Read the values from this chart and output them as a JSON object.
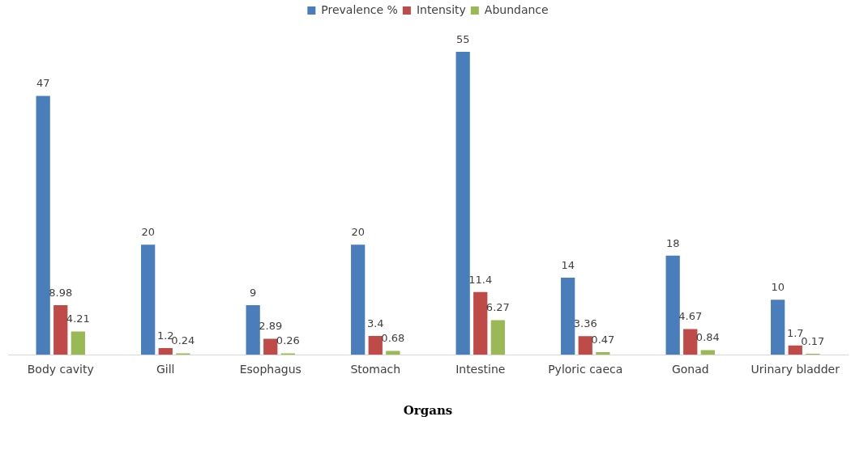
{
  "chart_data": {
    "type": "bar",
    "xlabel": "Organs",
    "categories": [
      "Body cavity",
      "Gill",
      "Esophagus",
      "Stomach",
      "Intestine",
      "Pyloric caeca",
      "Gonad",
      "Urinary bladder"
    ],
    "series": [
      {
        "name": "Prevalence %",
        "color": "#4a7ebb",
        "values": [
          47,
          20,
          9,
          20,
          55,
          14,
          18,
          10
        ]
      },
      {
        "name": "Intensity",
        "color": "#be4b48",
        "values": [
          8.98,
          1.2,
          2.89,
          3.4,
          11.4,
          3.36,
          4.67,
          1.7
        ]
      },
      {
        "name": "Abundance",
        "color": "#98b954",
        "values": [
          4.21,
          0.24,
          0.26,
          0.68,
          6.27,
          0.47,
          0.84,
          0.17
        ]
      }
    ],
    "data_labels": true,
    "grid": false,
    "legend": "top"
  }
}
